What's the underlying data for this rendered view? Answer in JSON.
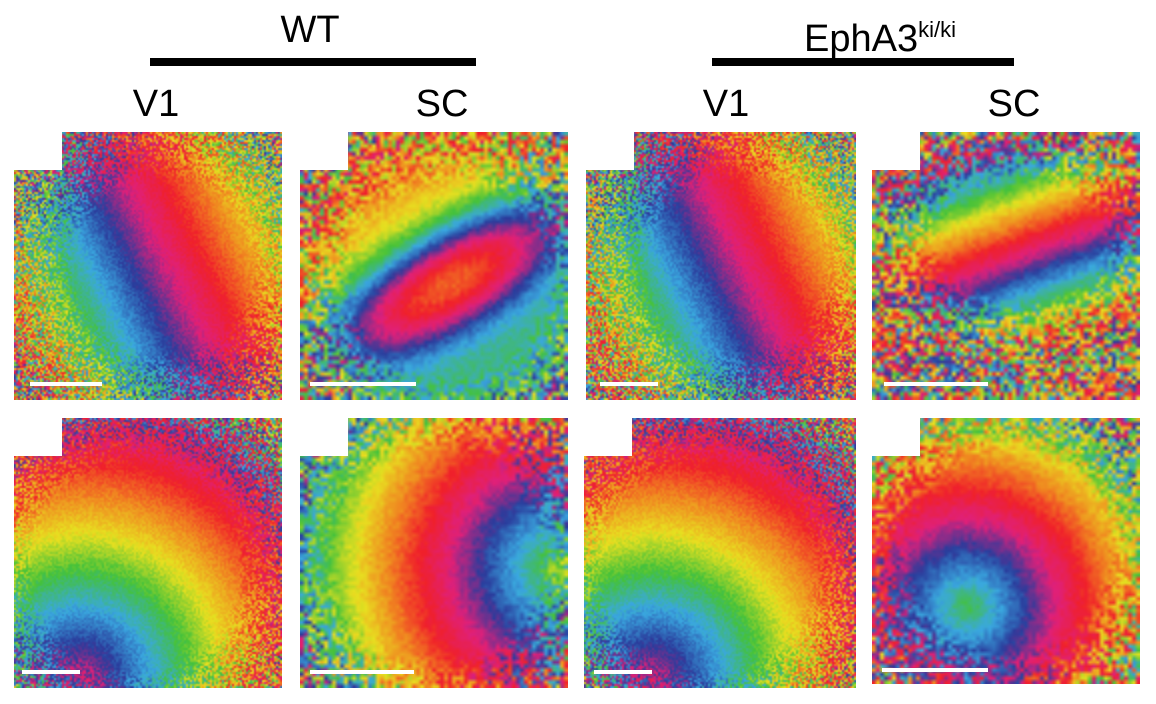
{
  "groups": [
    {
      "label": "WT"
    },
    {
      "label": "EphA3",
      "superscript": "ki/ki"
    }
  ],
  "columns": [
    "V1",
    "SC",
    "V1",
    "SC"
  ],
  "panels": [
    {
      "id": "wt-v1-top",
      "description_icon": "phase-map",
      "pattern": "diagonal-bands-v1"
    },
    {
      "id": "wt-sc-top",
      "description_icon": "phase-map",
      "pattern": "oblique-band-sc"
    },
    {
      "id": "ki-v1-top",
      "description_icon": "phase-map",
      "pattern": "diagonal-bands-v1"
    },
    {
      "id": "ki-sc-top",
      "description_icon": "phase-map",
      "pattern": "double-band-sc"
    },
    {
      "id": "wt-v1-bottom",
      "description_icon": "phase-map",
      "pattern": "curved-bands-v1"
    },
    {
      "id": "wt-sc-bottom",
      "description_icon": "phase-map",
      "pattern": "curved-band-sc"
    },
    {
      "id": "ki-v1-bottom",
      "description_icon": "phase-map",
      "pattern": "curved-bands-v1"
    },
    {
      "id": "ki-sc-bottom",
      "description_icon": "phase-map",
      "pattern": "split-band-sc"
    }
  ],
  "colors": {
    "scale_bar": "#ffffff",
    "phase_cycle": [
      "#e8e020",
      "#44c23a",
      "#3aa8e0",
      "#2a3c9c",
      "#e0207a",
      "#f0202a",
      "#f08a20"
    ]
  }
}
